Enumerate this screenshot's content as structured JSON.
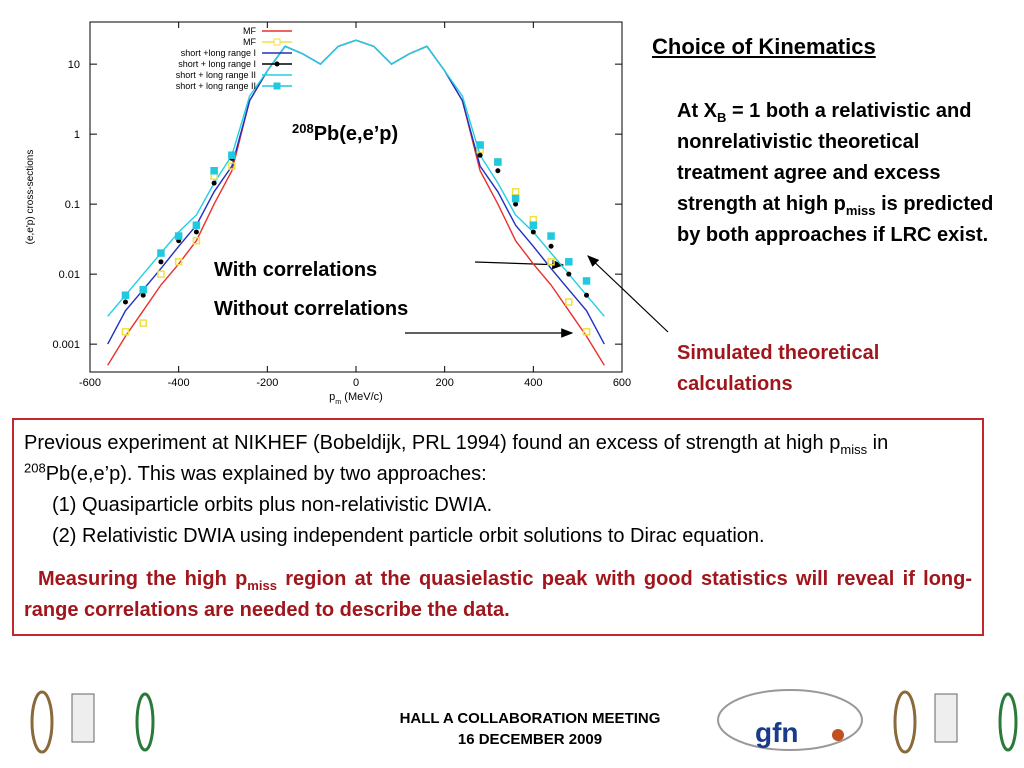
{
  "chart_data": {
    "type": "line",
    "y_label": "(e,e'p) cross-sections",
    "x_label": [
      {
        "text": "p"
      },
      {
        "sub": "m"
      },
      {
        "text": " (MeV/c)"
      }
    ],
    "isotope_label": [
      {
        "sup": "208"
      },
      {
        "text": "Pb(e,e’p)"
      }
    ],
    "with_label": "With correlations",
    "without_label": "Without correlations",
    "log_y": true,
    "xlim": [
      -600,
      600
    ],
    "xticks": [
      -600,
      -400,
      -200,
      0,
      200,
      400,
      600
    ],
    "ylim": [
      0.0004,
      40
    ],
    "yticks": [
      0.001,
      0.01,
      0.1,
      1,
      10
    ],
    "x": [
      -560,
      -520,
      -480,
      -440,
      -400,
      -360,
      -320,
      -280,
      -240,
      -200,
      -160,
      -120,
      -80,
      -40,
      0,
      40,
      80,
      120,
      160,
      200,
      240,
      280,
      320,
      360,
      400,
      440,
      480,
      520,
      560
    ],
    "series": [
      {
        "name": "MF",
        "color": "#e8312a",
        "values": [
          0.0005,
          0.0013,
          0.003,
          0.007,
          0.014,
          0.03,
          0.1,
          0.3,
          3,
          8,
          18,
          14,
          10,
          18,
          22,
          18,
          10,
          14,
          18,
          8,
          3,
          0.3,
          0.1,
          0.03,
          0.014,
          0.007,
          0.003,
          0.0013,
          0.0005
        ]
      },
      {
        "name": "short +long range I",
        "color": "#2030c0",
        "values": [
          0.001,
          0.003,
          0.006,
          0.012,
          0.025,
          0.05,
          0.15,
          0.35,
          3,
          8,
          18,
          14,
          10,
          18,
          22,
          18,
          10,
          14,
          18,
          8,
          3,
          0.35,
          0.15,
          0.05,
          0.025,
          0.012,
          0.006,
          0.003,
          0.001
        ]
      },
      {
        "name": "short + long range II",
        "color": "#20d0e0",
        "values": [
          0.0025,
          0.005,
          0.01,
          0.02,
          0.04,
          0.07,
          0.2,
          0.5,
          3.5,
          8,
          18,
          14,
          10,
          18,
          22,
          18,
          10,
          14,
          18,
          8,
          3.5,
          0.5,
          0.2,
          0.07,
          0.04,
          0.02,
          0.01,
          0.005,
          0.0025
        ]
      }
    ],
    "point_x": [
      -520,
      -480,
      -440,
      -400,
      -360,
      -320,
      -280,
      280,
      320,
      360,
      400,
      440,
      480,
      520
    ],
    "point_series": [
      {
        "name": "MF",
        "color": "#f0e040",
        "values": [
          0.0015,
          0.002,
          0.01,
          0.015,
          0.03,
          0.25,
          0.35,
          0.6,
          0.4,
          0.15,
          0.06,
          0.015,
          0.004,
          0.0015
        ]
      },
      {
        "name": "short + long range I",
        "color": "#000000",
        "values": [
          0.004,
          0.005,
          0.015,
          0.03,
          0.04,
          0.2,
          0.45,
          0.5,
          0.3,
          0.1,
          0.04,
          0.025,
          0.01,
          0.005
        ]
      },
      {
        "name": "short + long range II",
        "color": "#20c8e0",
        "values": [
          0.005,
          0.006,
          0.02,
          0.035,
          0.05,
          0.3,
          0.5,
          0.7,
          0.4,
          0.12,
          0.05,
          0.035,
          0.015,
          0.008
        ]
      }
    ]
  },
  "heading": "Choice of Kinematics",
  "side_text": [
    {
      "text": "At X"
    },
    {
      "sub": "B"
    },
    {
      "text": " = 1 both a relativistic and nonrelativistic theoretical treatment agree and excess strength at high p"
    },
    {
      "sub": "miss"
    },
    {
      "text": " is predicted by both approaches if LRC exist."
    }
  ],
  "side_note": "Simulated theoretical calculations",
  "box": {
    "intro": [
      {
        "text": " Previous experiment at NIKHEF (Bobeldijk, PRL 1994) found an excess of strength at high p"
      },
      {
        "sub": "miss"
      },
      {
        "text": " in "
      },
      {
        "sup": "208"
      },
      {
        "text": "Pb(e,e’p). This was explained by two approaches:"
      }
    ],
    "items": [
      "(1) Quasiparticle orbits plus non-relativistic DWIA.",
      "(2) Relativistic DWIA using independent particle orbit solutions to Dirac equation."
    ],
    "conclusion": [
      {
        "text": "Measuring the high p"
      },
      {
        "sub": "miss"
      },
      {
        "text": " region at the quasielastic peak with good statistics will reveal if long-range correlations are needed to describe the data."
      }
    ]
  },
  "footer": {
    "line1": "HALL A COLLABORATION MEETING",
    "line2": "16 DECEMBER 2009",
    "logo_text": "gfn"
  }
}
